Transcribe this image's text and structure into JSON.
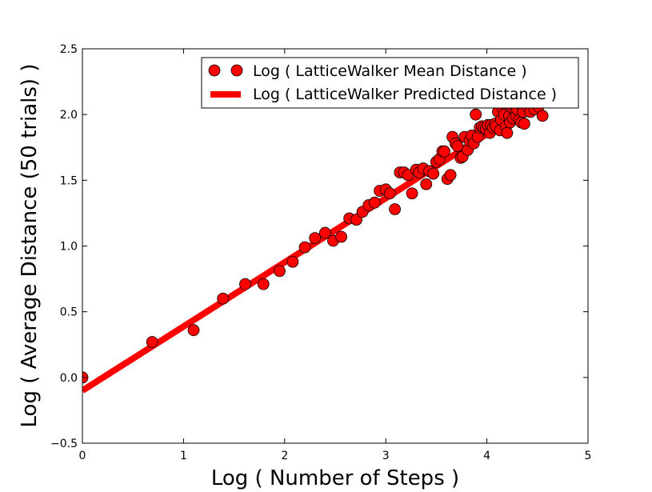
{
  "chart_data": {
    "type": "scatter",
    "title": "",
    "xlabel": "Log ( Number of Steps )",
    "ylabel": "Log ( Average Distance (50 trials) )",
    "xlim": [
      0,
      5
    ],
    "ylim": [
      -0.5,
      2.5
    ],
    "xticks": [
      0,
      1,
      2,
      3,
      4,
      5
    ],
    "xtick_labels": [
      "0",
      "1",
      "2",
      "3",
      "4",
      "5"
    ],
    "yticks": [
      -0.5,
      0.0,
      0.5,
      1.0,
      1.5,
      2.0,
      2.5
    ],
    "ytick_labels": [
      "−0.5",
      "0.0",
      "0.5",
      "1.0",
      "1.5",
      "2.0",
      "2.5"
    ],
    "grid": false,
    "legend_position": "top-right",
    "colors": {
      "series": "#ff0000",
      "marker_edge": "#000000"
    },
    "series": [
      {
        "name": "Log ( LatticeWalker Mean Distance )",
        "kind": "scatter",
        "points": [
          [
            0.0,
            0.0
          ],
          [
            0.69,
            0.27
          ],
          [
            1.1,
            0.36
          ],
          [
            1.39,
            0.6
          ],
          [
            1.61,
            0.71
          ],
          [
            1.79,
            0.71
          ],
          [
            1.95,
            0.81
          ],
          [
            2.08,
            0.88
          ],
          [
            2.2,
            0.99
          ],
          [
            2.3,
            1.06
          ],
          [
            2.4,
            1.1
          ],
          [
            2.48,
            1.04
          ],
          [
            2.56,
            1.07
          ],
          [
            2.64,
            1.21
          ],
          [
            2.71,
            1.2
          ],
          [
            2.77,
            1.26
          ],
          [
            2.83,
            1.31
          ],
          [
            2.89,
            1.33
          ],
          [
            2.94,
            1.42
          ],
          [
            3.0,
            1.43
          ],
          [
            3.04,
            1.4
          ],
          [
            3.09,
            1.28
          ],
          [
            3.14,
            1.56
          ],
          [
            3.18,
            1.56
          ],
          [
            3.22,
            1.54
          ],
          [
            3.26,
            1.4
          ],
          [
            3.3,
            1.58
          ],
          [
            3.33,
            1.56
          ],
          [
            3.37,
            1.59
          ],
          [
            3.4,
            1.47
          ],
          [
            3.43,
            1.57
          ],
          [
            3.47,
            1.55
          ],
          [
            3.5,
            1.64
          ],
          [
            3.53,
            1.66
          ],
          [
            3.56,
            1.72
          ],
          [
            3.58,
            1.72
          ],
          [
            3.61,
            1.51
          ],
          [
            3.64,
            1.54
          ],
          [
            3.66,
            1.83
          ],
          [
            3.69,
            1.78
          ],
          [
            3.71,
            1.76
          ],
          [
            3.74,
            1.67
          ],
          [
            3.76,
            1.68
          ],
          [
            3.78,
            1.83
          ],
          [
            3.81,
            1.73
          ],
          [
            3.83,
            1.8
          ],
          [
            3.85,
            1.84
          ],
          [
            3.87,
            1.78
          ],
          [
            3.89,
            2.0
          ],
          [
            3.91,
            1.83
          ],
          [
            3.93,
            1.9
          ],
          [
            3.95,
            1.91
          ],
          [
            3.97,
            1.9
          ],
          [
            3.99,
            1.89
          ],
          [
            4.01,
            1.92
          ],
          [
            4.03,
            1.86
          ],
          [
            4.04,
            1.92
          ],
          [
            4.06,
            1.9
          ],
          [
            4.08,
            1.93
          ],
          [
            4.09,
            1.91
          ],
          [
            4.11,
            2.02
          ],
          [
            4.13,
            1.88
          ],
          [
            4.14,
            1.96
          ],
          [
            4.16,
            2.04
          ],
          [
            4.17,
            2.0
          ],
          [
            4.19,
            1.91
          ],
          [
            4.2,
            1.86
          ],
          [
            4.22,
            1.99
          ],
          [
            4.23,
            1.94
          ],
          [
            4.25,
            2.05
          ],
          [
            4.26,
            1.97
          ],
          [
            4.28,
            2.03
          ],
          [
            4.29,
            1.99
          ],
          [
            4.3,
            2.04
          ],
          [
            4.32,
            1.96
          ],
          [
            4.33,
            2.08
          ],
          [
            4.34,
            1.94
          ],
          [
            4.36,
            2.02
          ],
          [
            4.37,
            1.93
          ],
          [
            4.38,
            2.1
          ],
          [
            4.4,
            2.06
          ],
          [
            4.43,
            2.02
          ],
          [
            4.47,
            2.04
          ],
          [
            4.51,
            2.06
          ],
          [
            4.55,
            1.99
          ]
        ]
      },
      {
        "name": "Log ( LatticeWalker Predicted Distance )",
        "kind": "line",
        "line": [
          [
            0.0,
            -0.1
          ],
          [
            4.55,
            2.12
          ]
        ]
      }
    ]
  }
}
